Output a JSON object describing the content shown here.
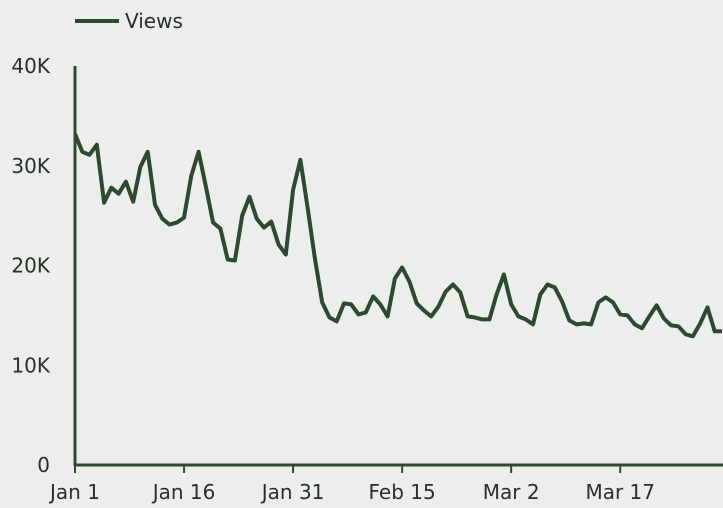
{
  "chart_data": {
    "type": "line",
    "title": "",
    "xlabel": "",
    "ylabel": "",
    "ylim": [
      0,
      40000
    ],
    "grid": false,
    "legend": {
      "position": "top-left"
    },
    "y_ticks": [
      {
        "value": 0,
        "label": "0"
      },
      {
        "value": 10000,
        "label": "10K"
      },
      {
        "value": 20000,
        "label": "20K"
      },
      {
        "value": 30000,
        "label": "30K"
      },
      {
        "value": 40000,
        "label": "40K"
      }
    ],
    "x_ticks": [
      {
        "day": 0,
        "label": "Jan 1"
      },
      {
        "day": 15,
        "label": "Jan 16"
      },
      {
        "day": 30,
        "label": "Jan 31"
      },
      {
        "day": 45,
        "label": "Feb 15"
      },
      {
        "day": 60,
        "label": "Mar 2"
      },
      {
        "day": 75,
        "label": "Mar 17"
      }
    ],
    "series": [
      {
        "name": "Views",
        "color": "#2d4a30",
        "values": [
          33200,
          31400,
          31100,
          32100,
          26300,
          27800,
          27200,
          28400,
          26400,
          29900,
          31400,
          26100,
          24700,
          24100,
          24300,
          24800,
          29000,
          31400,
          27900,
          24300,
          23700,
          20600,
          20500,
          25000,
          26900,
          24700,
          23800,
          24400,
          22100,
          21100,
          27600,
          30600,
          25800,
          20700,
          16300,
          14800,
          14400,
          16200,
          16100,
          15100,
          15300,
          16900,
          16100,
          14900,
          18700,
          19800,
          18400,
          16200,
          15500,
          14900,
          15900,
          17400,
          18100,
          17300,
          14900,
          14800,
          14600,
          14600,
          17100,
          19100,
          16100,
          14900,
          14600,
          14100,
          17100,
          18100,
          17800,
          16400,
          14500,
          14100,
          14200,
          14100,
          16300,
          16800,
          16300,
          15100,
          15000,
          14100,
          13700,
          14900,
          16000,
          14700,
          14000,
          13900,
          13100,
          12900,
          14200,
          15800,
          13400,
          13400
        ]
      }
    ]
  }
}
